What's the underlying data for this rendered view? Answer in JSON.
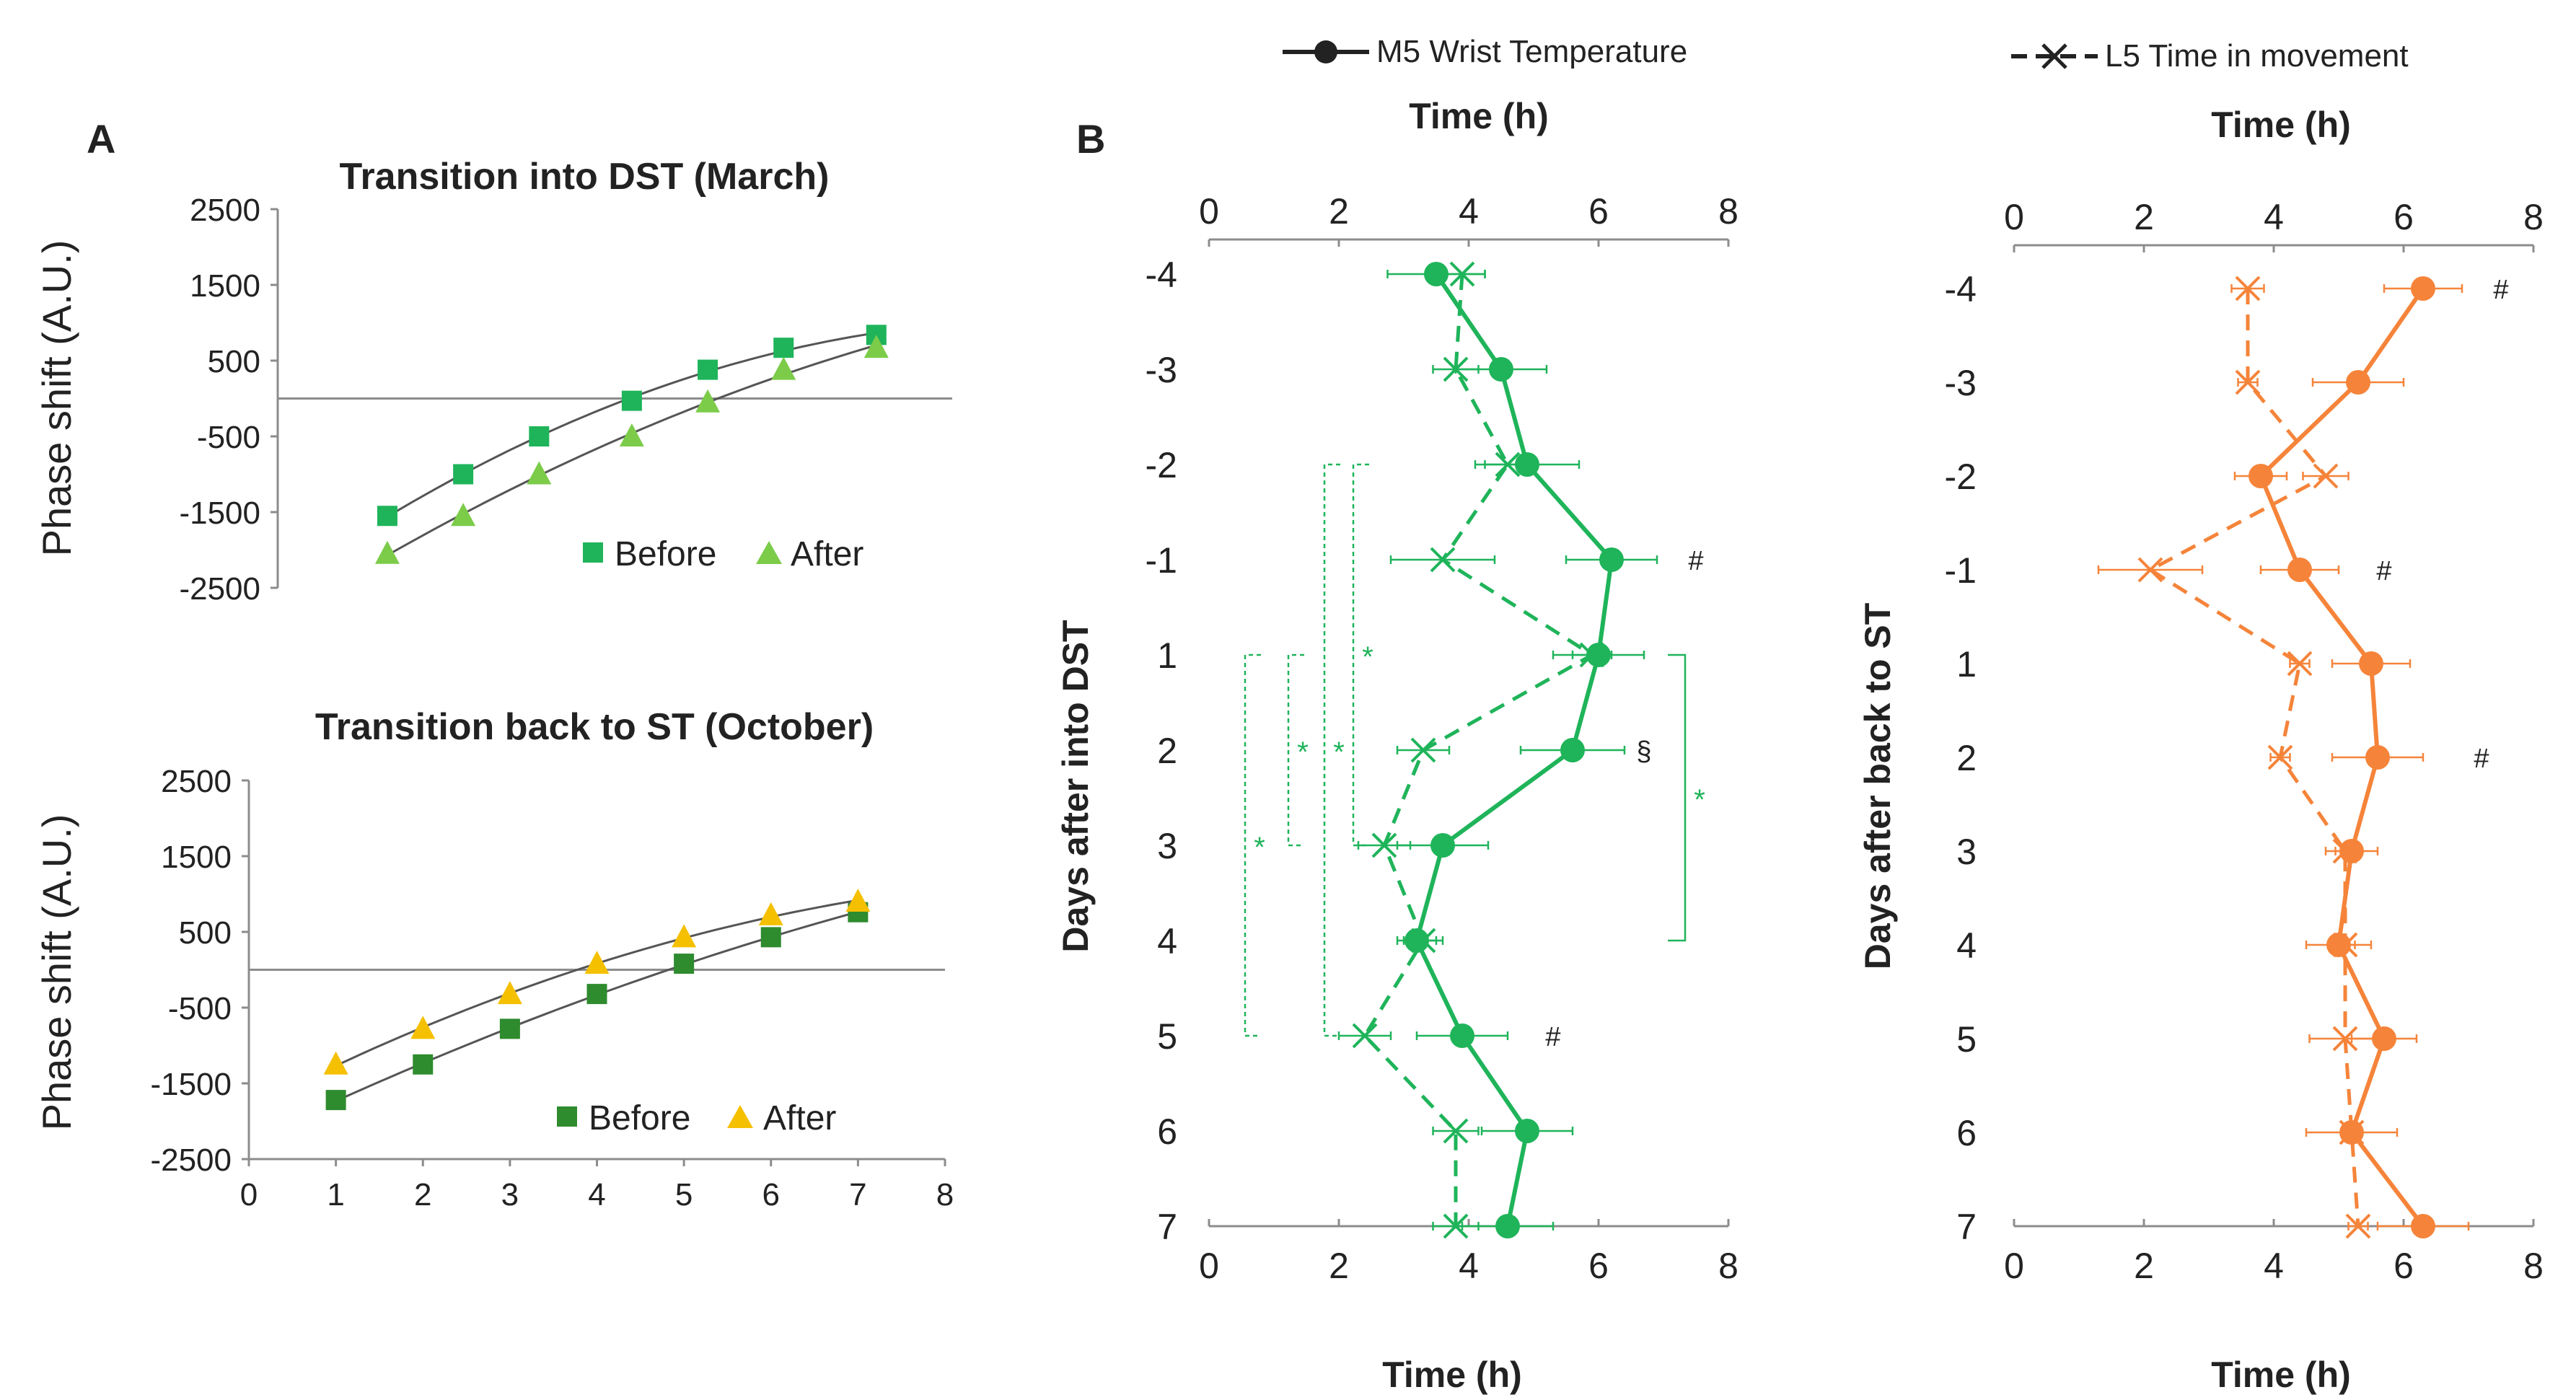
{
  "chart_data": [
    {
      "id": "A1",
      "type": "scatter",
      "panel_label": "A",
      "title": "Transition into DST (March)",
      "xlabel": "",
      "ylabel": "Phase shift (A.U.)",
      "xlim": [
        0,
        8
      ],
      "ylim": [
        -2500,
        2500
      ],
      "y_ticks": [
        2500,
        1500,
        500,
        -500,
        -1500,
        -2500
      ],
      "x_ticks": [],
      "trend_lines": true,
      "series": [
        {
          "name": "Before",
          "marker": "square",
          "color": "#1fb45a",
          "x": [
            1.3,
            2.2,
            3.1,
            4.2,
            5.1,
            6.0,
            7.1
          ],
          "y": [
            -1550,
            -1000,
            -500,
            -30,
            380,
            670,
            840
          ]
        },
        {
          "name": "After",
          "marker": "triangle",
          "color": "#7ccc4a",
          "x": [
            1.3,
            2.2,
            3.1,
            4.2,
            5.1,
            6.0,
            7.1
          ],
          "y": [
            -2050,
            -1550,
            -1000,
            -500,
            -50,
            380,
            670
          ]
        }
      ]
    },
    {
      "id": "A2",
      "type": "scatter",
      "title": "Transition back to ST (October)",
      "xlabel": "",
      "ylabel": "Phase shift (A.U.)",
      "xlim": [
        0,
        8
      ],
      "ylim": [
        -2500,
        2500
      ],
      "y_ticks": [
        2500,
        1500,
        500,
        -500,
        -1500,
        -2500
      ],
      "x_ticks": [
        0,
        1,
        2,
        3,
        4,
        5,
        6,
        7,
        8
      ],
      "trend_lines": true,
      "series": [
        {
          "name": "Before",
          "marker": "square",
          "color": "#2e8b2e",
          "x": [
            1,
            2,
            3,
            4,
            5,
            6,
            7
          ],
          "y": [
            -1720,
            -1250,
            -780,
            -320,
            80,
            430,
            760
          ]
        },
        {
          "name": "After",
          "marker": "triangle",
          "color": "#f5c000",
          "x": [
            1,
            2,
            3,
            4,
            5,
            6,
            7
          ],
          "y": [
            -1250,
            -780,
            -320,
            80,
            430,
            720,
            900
          ]
        }
      ]
    },
    {
      "id": "B1",
      "type": "line",
      "panel_label": "B",
      "color": "#1fb45a",
      "xlabel": "Time (h)",
      "ylabel": "Days after into DST",
      "xlim": [
        0,
        8
      ],
      "x_ticks": [
        0,
        2,
        4,
        6,
        8
      ],
      "categories": [
        "-4",
        "-3",
        "-2",
        "-1",
        "1",
        "2",
        "3",
        "4",
        "5",
        "6",
        "7"
      ],
      "series": [
        {
          "name": "M5 Wrist Temperature",
          "style": "solid",
          "marker": "circle",
          "values": [
            3.5,
            4.5,
            4.9,
            6.2,
            6.0,
            5.6,
            3.6,
            3.2,
            3.9,
            4.9,
            4.6
          ],
          "errors": [
            0.75,
            0.7,
            0.8,
            0.7,
            0.7,
            0.8,
            0.7,
            0.3,
            0.7,
            0.7,
            0.7
          ]
        },
        {
          "name": "L5 Time in movement",
          "style": "dashed",
          "marker": "x",
          "values": [
            3.9,
            3.8,
            4.6,
            3.6,
            5.9,
            3.3,
            2.7,
            3.3,
            2.4,
            3.8,
            3.8
          ],
          "errors": [
            0.35,
            0.35,
            0.35,
            0.8,
            0.3,
            0.4,
            0.4,
            0.3,
            0.4,
            0.35,
            0.35
          ]
        }
      ],
      "annotations": [
        {
          "category": "-1",
          "x": 7.5,
          "text": "#"
        },
        {
          "category": "2",
          "x": 6.7,
          "text": "§"
        },
        {
          "category": "5",
          "x": 5.3,
          "text": "#"
        }
      ],
      "brackets": [
        {
          "from": "-2",
          "to": "3",
          "side": "left",
          "style": "dashed",
          "text": "*"
        },
        {
          "from": "-2",
          "to": "5",
          "side": "left",
          "style": "dashed",
          "text": "*"
        },
        {
          "from": "1",
          "to": "3",
          "side": "left",
          "style": "dashed",
          "text": "*"
        },
        {
          "from": "1",
          "to": "5",
          "side": "left",
          "style": "dashed",
          "text": "*"
        },
        {
          "from": "1",
          "to": "4",
          "side": "right",
          "style": "solid",
          "text": "*"
        }
      ]
    },
    {
      "id": "B2",
      "type": "line",
      "color": "#f5843a",
      "xlabel": "Time (h)",
      "ylabel": "Days after back to ST",
      "xlim": [
        0,
        8
      ],
      "x_ticks": [
        0,
        2,
        4,
        6,
        8
      ],
      "categories": [
        "-4",
        "-3",
        "-2",
        "-1",
        "1",
        "2",
        "3",
        "4",
        "5",
        "6",
        "7"
      ],
      "series": [
        {
          "name": "M5 Wrist Temperature",
          "style": "solid",
          "marker": "circle",
          "values": [
            6.3,
            5.3,
            3.8,
            4.4,
            5.5,
            5.6,
            5.2,
            5.0,
            5.7,
            5.2,
            6.3
          ],
          "errors": [
            0.6,
            0.7,
            0.4,
            0.6,
            0.6,
            0.7,
            0.4,
            0.5,
            0.5,
            0.7,
            0.7
          ]
        },
        {
          "name": "L5 Time in movement",
          "style": "dashed",
          "marker": "x",
          "values": [
            3.6,
            3.6,
            4.8,
            2.1,
            4.4,
            4.1,
            5.1,
            5.1,
            5.1,
            5.2,
            5.3
          ],
          "errors": [
            0.25,
            0.15,
            0.35,
            0.8,
            0.15,
            0.15,
            0.15,
            0.15,
            0.55,
            0.15,
            0.15
          ]
        }
      ],
      "annotations": [
        {
          "category": "-4",
          "x": 7.5,
          "text": "#"
        },
        {
          "category": "-1",
          "x": 5.7,
          "text": "#"
        },
        {
          "category": "2",
          "x": 7.2,
          "text": "#"
        }
      ],
      "brackets": []
    }
  ],
  "legend": {
    "m5_label": "M5 Wrist Temperature",
    "l5_label": "L5 Time in movement"
  },
  "axis_titles": {
    "time_h": "Time (h)"
  },
  "colors": {
    "green": "#1fb45a",
    "orange": "#f5843a",
    "axis": "#8c8c8c",
    "text": "#222222"
  }
}
